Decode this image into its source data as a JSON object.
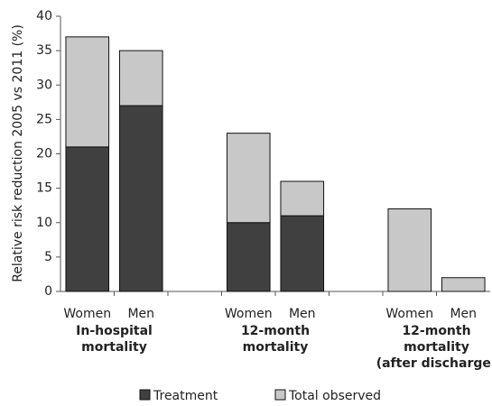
{
  "chart_data": {
    "type": "stacked-bar",
    "y_label": "Relative risk reduction 2005 vs 2011 (%)",
    "categories": [
      "Women",
      "Men",
      null,
      "Women",
      "Men",
      null,
      "Women",
      "Men"
    ],
    "groups": [
      [
        "In-hospital",
        "mortality"
      ],
      [
        "12-month",
        "mortality"
      ],
      [
        "12-month",
        "mortality",
        "(after discharge)"
      ]
    ],
    "series": [
      {
        "name": "Treatment",
        "color": "#404040",
        "values": [
          21,
          27,
          null,
          10,
          11,
          null,
          0,
          0
        ]
      },
      {
        "name": "Total observed",
        "color": "#c8c8c8",
        "values": [
          16,
          8,
          null,
          13,
          5,
          null,
          12,
          2
        ]
      }
    ],
    "ylim": [
      0,
      40
    ],
    "yticks": [
      0,
      5,
      10,
      15,
      20,
      25,
      30,
      35,
      40
    ],
    "grid": false
  }
}
